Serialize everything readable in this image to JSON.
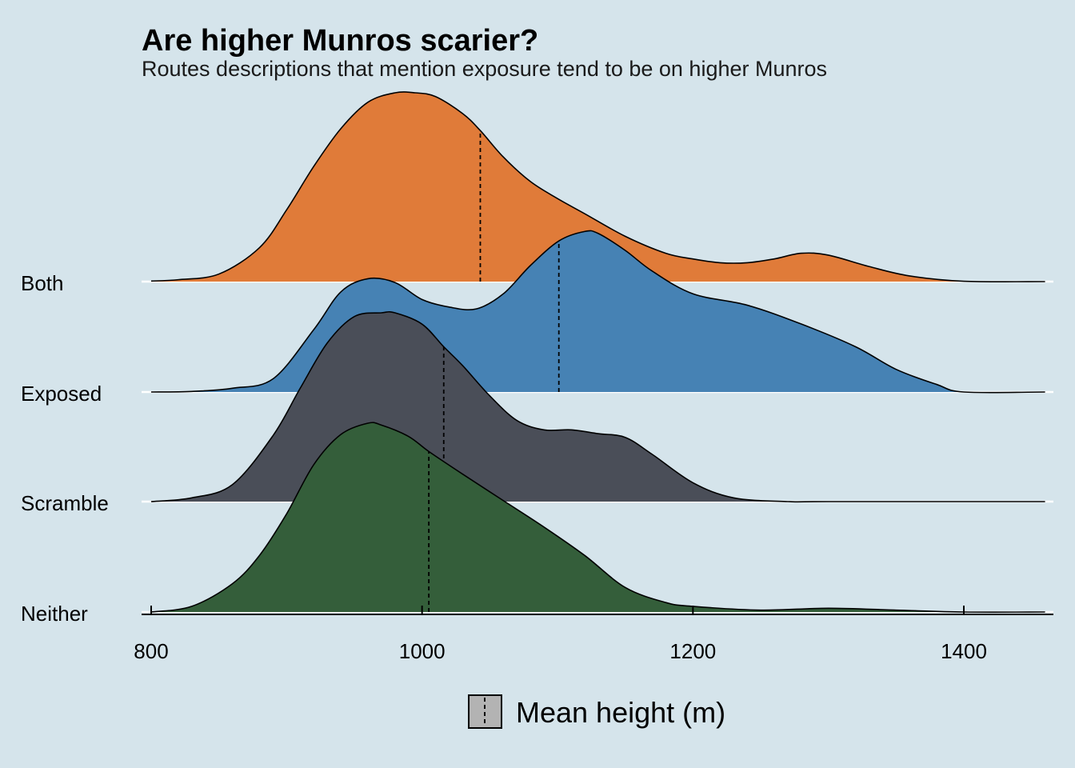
{
  "chart_data": {
    "type": "ridgeline-density",
    "title": "Are higher Munros scarier?",
    "subtitle": "Routes descriptions that mention exposure tend to be on higher Munros",
    "xlabel": "",
    "ylabel": "",
    "xlim": [
      793,
      1460
    ],
    "x_ticks": [
      800,
      1000,
      1200,
      1400
    ],
    "x_tick_labels": [
      "800",
      "1000",
      "1200",
      "1400"
    ],
    "grid": "horizontal baselines only",
    "legend_position": "bottom",
    "legend": {
      "label": "Mean height (m)",
      "key": "dashed-line",
      "key_fill": "#b3b3b3"
    },
    "background_color": "#d5e4eb",
    "categories": [
      "Neither",
      "Scramble",
      "Exposed",
      "Both"
    ],
    "series": [
      {
        "name": "Both",
        "color": "#e07b39",
        "mean": 1043,
        "x": [
          800,
          820,
          850,
          880,
          900,
          920,
          940,
          960,
          980,
          995,
          1010,
          1030,
          1043,
          1060,
          1080,
          1100,
          1120,
          1150,
          1180,
          1200,
          1220,
          1240,
          1260,
          1280,
          1300,
          1330,
          1360,
          1400,
          1460
        ],
        "density": [
          0.003,
          0.01,
          0.04,
          0.18,
          0.38,
          0.61,
          0.81,
          0.95,
          1.0,
          1.0,
          0.98,
          0.89,
          0.8,
          0.66,
          0.53,
          0.44,
          0.36,
          0.24,
          0.15,
          0.12,
          0.1,
          0.1,
          0.12,
          0.15,
          0.14,
          0.08,
          0.03,
          0.002,
          0.0
        ]
      },
      {
        "name": "Exposed",
        "color": "#4682b4",
        "mean": 1101,
        "x": [
          800,
          830,
          860,
          890,
          920,
          940,
          960,
          980,
          1000,
          1020,
          1040,
          1060,
          1080,
          1101,
          1120,
          1130,
          1150,
          1170,
          1200,
          1240,
          1280,
          1320,
          1350,
          1380,
          1400,
          1460
        ],
        "density": [
          0.0,
          0.003,
          0.02,
          0.07,
          0.33,
          0.53,
          0.6,
          0.58,
          0.49,
          0.45,
          0.44,
          0.52,
          0.67,
          0.8,
          0.85,
          0.84,
          0.75,
          0.64,
          0.52,
          0.46,
          0.36,
          0.24,
          0.12,
          0.04,
          0.0,
          0.0
        ]
      },
      {
        "name": "Scramble",
        "color": "#4a4e58",
        "mean": 1016,
        "x": [
          800,
          830,
          860,
          890,
          910,
          930,
          950,
          970,
          980,
          1000,
          1016,
          1030,
          1050,
          1070,
          1090,
          1110,
          1130,
          1150,
          1170,
          1200,
          1230,
          1270,
          1300,
          1460
        ],
        "density": [
          0.0,
          0.02,
          0.09,
          0.35,
          0.6,
          0.84,
          0.98,
          1.0,
          1.0,
          0.94,
          0.82,
          0.72,
          0.56,
          0.43,
          0.38,
          0.38,
          0.36,
          0.34,
          0.25,
          0.1,
          0.02,
          0.0,
          0.0,
          0.0
        ]
      },
      {
        "name": "Neither",
        "color": "#345e3a",
        "mean": 1005,
        "x": [
          800,
          830,
          860,
          880,
          900,
          920,
          940,
          960,
          970,
          990,
          1005,
          1030,
          1060,
          1090,
          1120,
          1150,
          1180,
          1200,
          1250,
          1300,
          1350,
          1400,
          1460
        ],
        "density": [
          0.0,
          0.03,
          0.15,
          0.3,
          0.52,
          0.78,
          0.94,
          1.0,
          0.99,
          0.93,
          0.85,
          0.73,
          0.59,
          0.45,
          0.3,
          0.13,
          0.05,
          0.03,
          0.01,
          0.02,
          0.01,
          0.0,
          0.0
        ]
      }
    ]
  }
}
